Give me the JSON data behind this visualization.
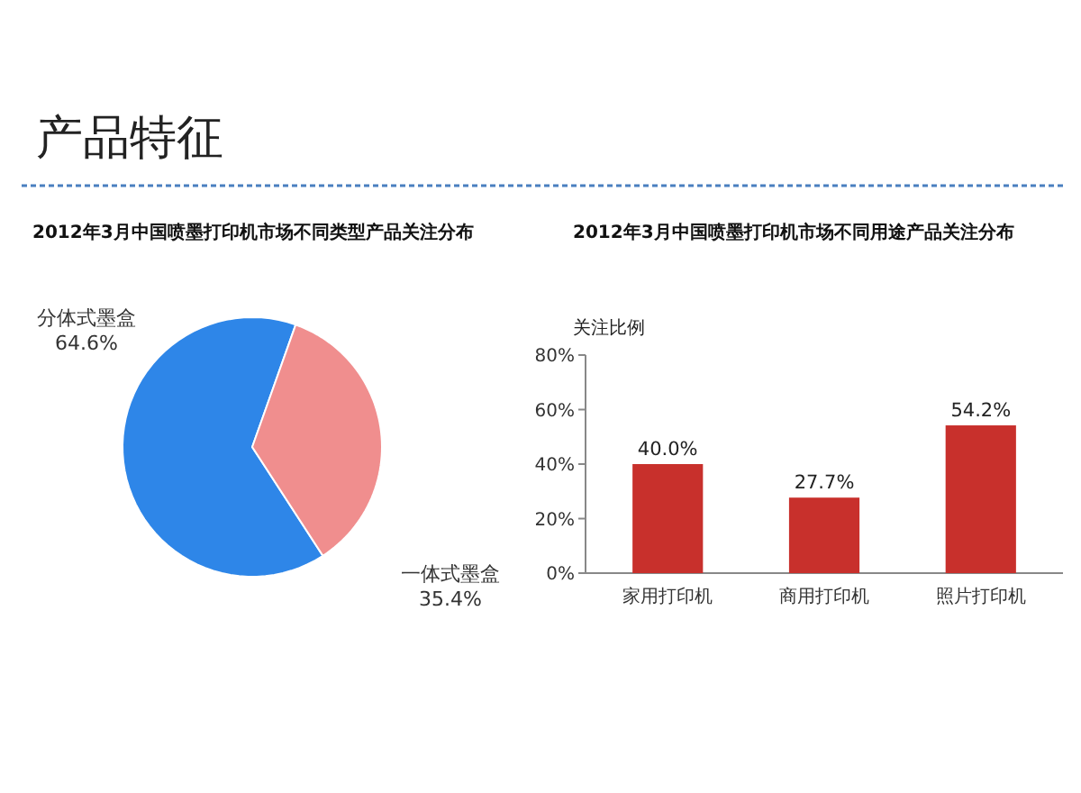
{
  "chart_data": [
    {
      "type": "other",
      "title": "产品特征"
    },
    {
      "type": "pie",
      "title": "2012年3月中国喷墨打印机市场不同类型产品关注分布",
      "categories": [
        "分体式墨盒",
        "一体式墨盒"
      ],
      "values": [
        64.6,
        35.4
      ],
      "colors": [
        "#2e86e8",
        "#f08e8e"
      ],
      "value_labels": [
        "64.6%",
        "35.4%"
      ]
    },
    {
      "type": "bar",
      "title": "2012年3月中国喷墨打印机市场不同用途产品关注分布",
      "ylabel": "关注比例",
      "categories": [
        "家用打印机",
        "商用打印机",
        "照片打印机"
      ],
      "values": [
        40.0,
        27.7,
        54.2
      ],
      "color": "#c8302c",
      "value_labels": [
        "40.0%",
        "27.7%",
        "54.2%"
      ],
      "ylim": [
        0,
        80
      ],
      "yticks": [
        {
          "value": 0,
          "label": "0%"
        },
        {
          "value": 20,
          "label": "20%"
        },
        {
          "value": 40,
          "label": "40%"
        },
        {
          "value": 60,
          "label": "60%"
        },
        {
          "value": 80,
          "label": "80%"
        }
      ]
    }
  ]
}
